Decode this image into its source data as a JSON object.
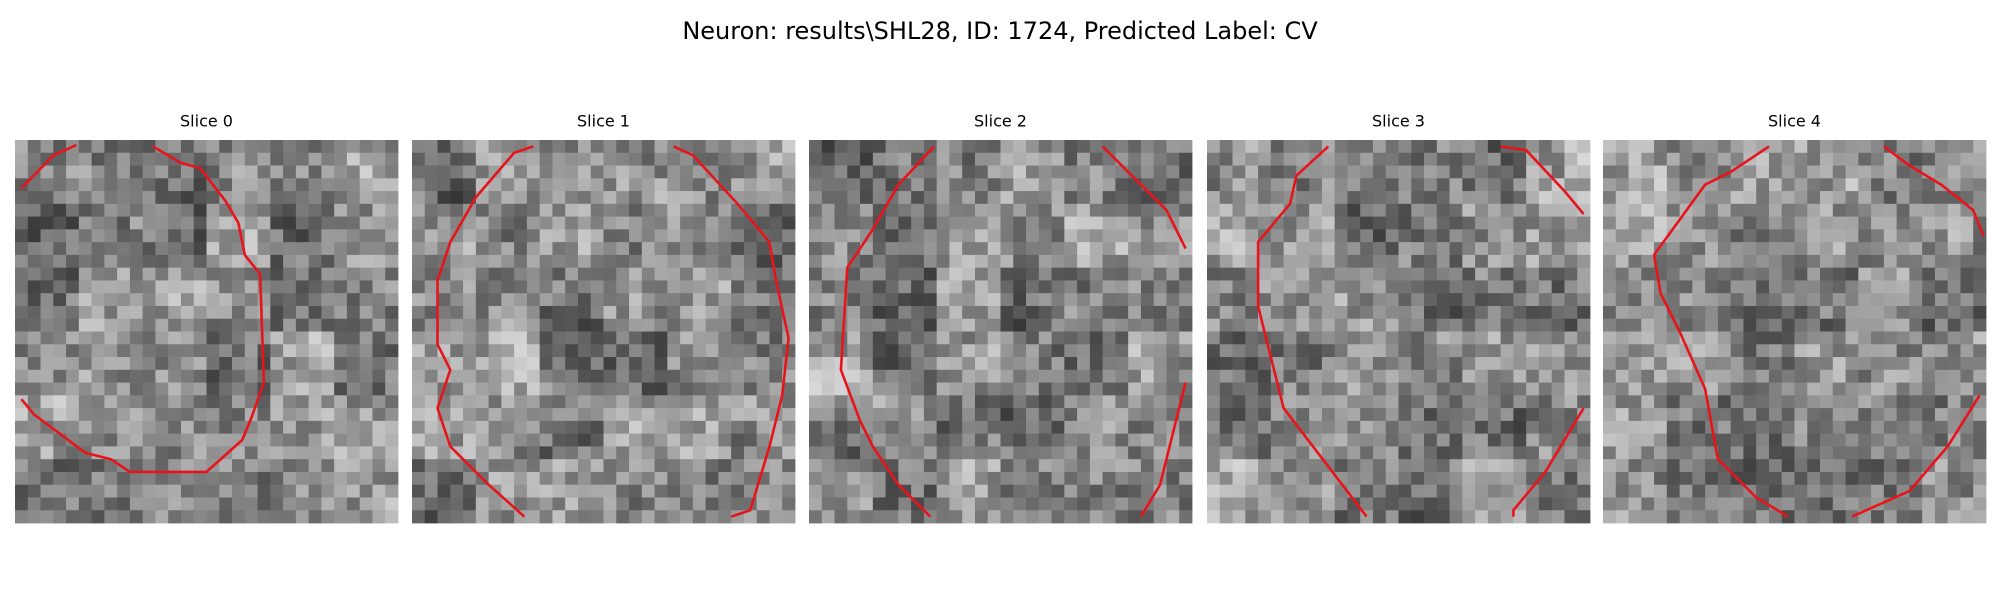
{
  "title": "Neuron: results\\SHL28, ID: 1724, Predicted Label: CV",
  "panels": [
    {
      "title": "Slice 0"
    },
    {
      "title": "Slice 1"
    },
    {
      "title": "Slice 2"
    },
    {
      "title": "Slice 3"
    },
    {
      "title": "Slice 4"
    }
  ]
}
